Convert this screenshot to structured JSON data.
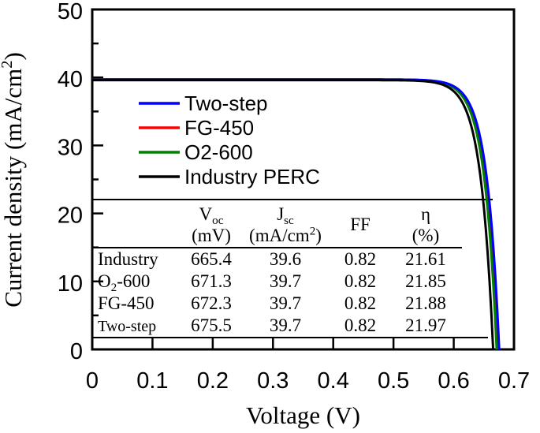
{
  "chart_data": {
    "type": "line",
    "title": "",
    "xlabel": "Voltage (V)",
    "ylabel": "Current density (mA/cm^2^)",
    "xlim": [
      0,
      0.7
    ],
    "ylim": [
      0,
      50
    ],
    "x_ticks": [
      "0",
      "0.1",
      "0.2",
      "0.3",
      "0.4",
      "0.5",
      "0.6",
      "0.7"
    ],
    "y_ticks": [
      "0",
      "10",
      "20",
      "30",
      "40",
      "50"
    ],
    "y_minor_ticks": [
      5,
      15,
      25,
      35,
      45
    ],
    "grid": false,
    "legend_position": "inside upper-left area",
    "series": [
      {
        "name": "Two-step",
        "color": "#0000ff",
        "jsc_mA_cm2": 39.7,
        "voc_V": 0.6755
      },
      {
        "name": "FG-450",
        "color": "#ff0000",
        "jsc_mA_cm2": 39.7,
        "voc_V": 0.6723
      },
      {
        "name": "O2-600",
        "color": "#008000",
        "jsc_mA_cm2": 39.7,
        "voc_V": 0.6713
      },
      {
        "name": "Industry PERC",
        "color": "#000000",
        "jsc_mA_cm2": 39.6,
        "voc_V": 0.6654
      }
    ]
  },
  "inset_table": {
    "columns_line1": [
      "V~oc~",
      "J~sc~",
      "FF",
      "η"
    ],
    "columns_line2": [
      "(mV)",
      "(mA/cm^2^)",
      "",
      "(%)"
    ],
    "rows": [
      {
        "label": "Industry",
        "values": [
          "665.4",
          "39.6",
          "0.82",
          "21.61"
        ]
      },
      {
        "label": "O~2~-600",
        "values": [
          "671.3",
          "39.7",
          "0.82",
          "21.85"
        ]
      },
      {
        "label": "FG-450",
        "values": [
          "672.3",
          "39.7",
          "0.82",
          "21.88"
        ]
      },
      {
        "label": "Two-step",
        "values": [
          "675.5",
          "39.7",
          "0.82",
          "21.97"
        ]
      }
    ]
  },
  "colors": {
    "background": "#ffffff",
    "axis": "#000000",
    "text": "#000000"
  }
}
